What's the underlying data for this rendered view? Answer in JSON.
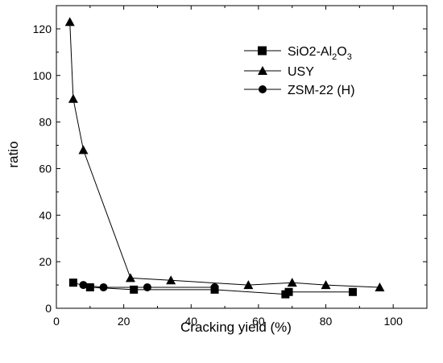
{
  "chart_data": {
    "type": "scatter",
    "xlabel": "Cracking yield (%)",
    "ylabel": "ratio",
    "xlim": [
      0,
      110
    ],
    "ylim": [
      0,
      130
    ],
    "xticks": [
      "0",
      "20",
      "40",
      "60",
      "80",
      "100"
    ],
    "yticks": [
      "0",
      "20",
      "40",
      "60",
      "80",
      "100",
      "120"
    ],
    "grid": false,
    "legend_position": "top-right",
    "series": [
      {
        "name_main": "SiO2-Al",
        "name_sub1": "2",
        "name_mid": "O",
        "name_sub2": "3",
        "marker": "square",
        "x": [
          5,
          10,
          23,
          47,
          68,
          69,
          88
        ],
        "y": [
          11,
          9,
          8,
          8,
          6,
          7,
          7
        ]
      },
      {
        "name": "USY",
        "marker": "triangle",
        "x": [
          4,
          5,
          8,
          22,
          34,
          57,
          70,
          80,
          96
        ],
        "y": [
          123,
          90,
          68,
          13,
          12,
          10,
          11,
          10,
          9
        ]
      },
      {
        "name": "ZSM-22 (H)",
        "marker": "circle",
        "x": [
          8,
          14,
          27,
          47
        ],
        "y": [
          10,
          9,
          9,
          9
        ]
      }
    ]
  }
}
